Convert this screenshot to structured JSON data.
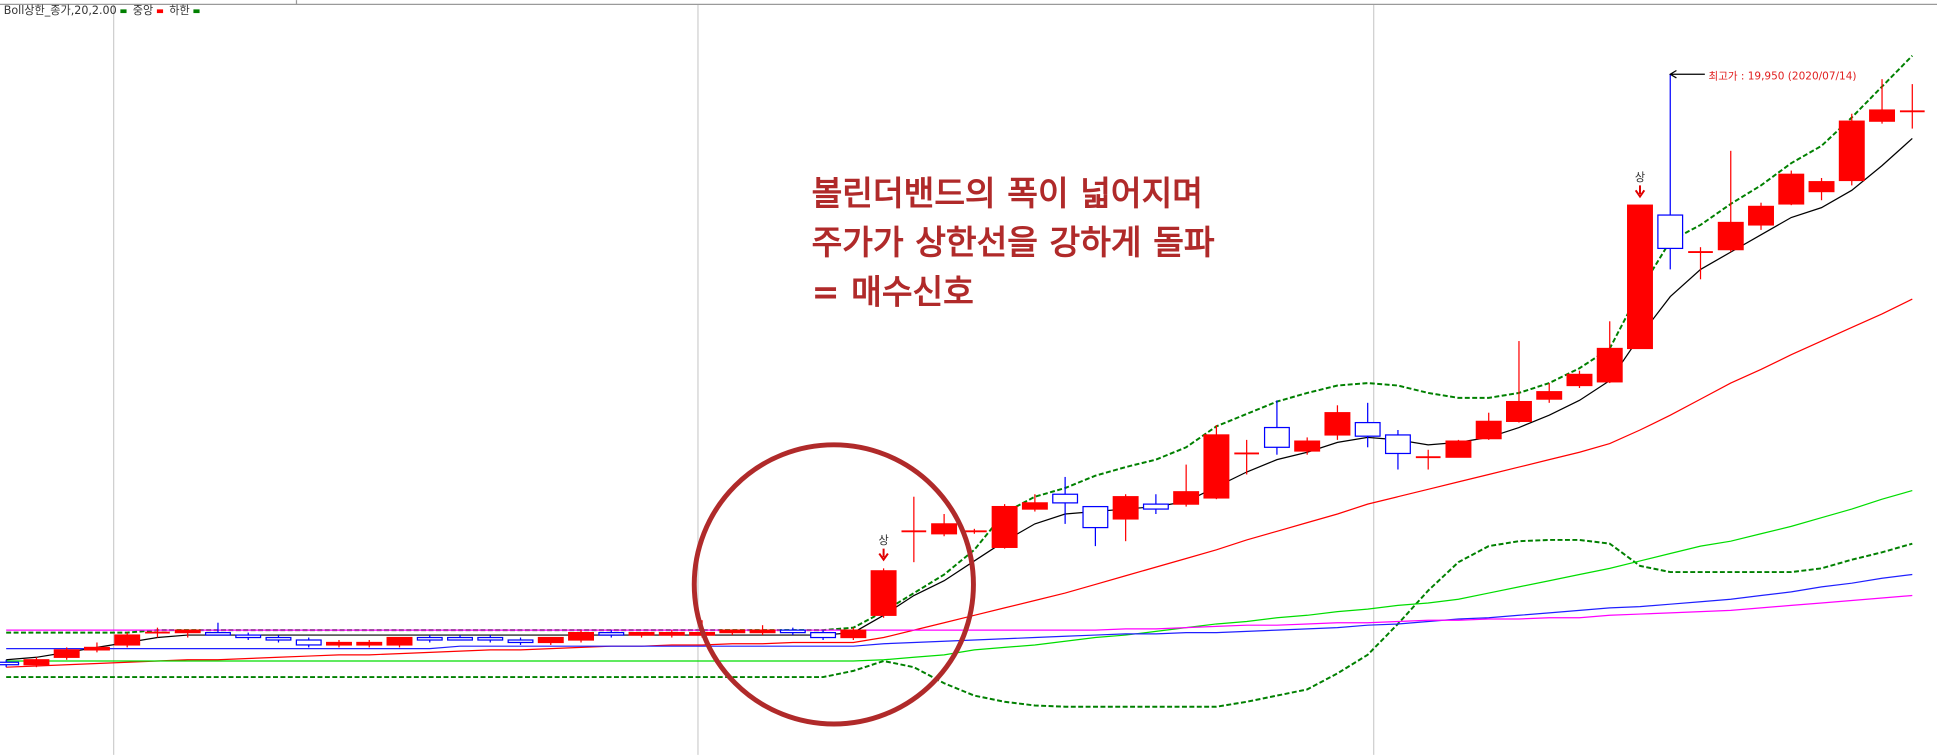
{
  "chart_data": {
    "type": "candlestick",
    "ylim": [
      6175,
      21450
    ],
    "up_color": "#ff0000",
    "down_color": "#0000ff",
    "candles": {
      "open": [
        8050,
        8000,
        8150,
        8300,
        8400,
        8650,
        8650,
        8650,
        8600,
        8550,
        8500,
        8400,
        8400,
        8400,
        8550,
        8550,
        8550,
        8500,
        8450,
        8500,
        8650,
        8600,
        8600,
        8600,
        8650,
        8650,
        8700,
        8650,
        8550,
        9000,
        10700,
        10650,
        10700,
        10375,
        11150,
        11450,
        11200,
        10950,
        11250,
        11250,
        11375,
        12275,
        12800,
        12325,
        12650,
        12900,
        12650,
        12200,
        12200,
        12575,
        12925,
        13375,
        13650,
        13725,
        14400,
        17100,
        16350,
        16400,
        16900,
        17325,
        17575,
        17800,
        19000,
        19200
      ],
      "high": [
        8100,
        8150,
        8350,
        8450,
        8650,
        8750,
        8700,
        8850,
        8650,
        8600,
        8550,
        8500,
        8500,
        8550,
        8600,
        8600,
        8600,
        8550,
        8550,
        8700,
        8700,
        8650,
        8700,
        8900,
        8700,
        8800,
        8750,
        8700,
        8750,
        9950,
        11400,
        11050,
        10750,
        11250,
        11450,
        11800,
        11200,
        11450,
        11450,
        12050,
        12850,
        12550,
        13350,
        12600,
        13250,
        13300,
        12750,
        12350,
        12550,
        13100,
        14550,
        13700,
        13950,
        14950,
        17300,
        19950,
        16450,
        18400,
        17350,
        18000,
        17850,
        19150,
        19850,
        19750
      ],
      "low": [
        7950,
        7950,
        8100,
        8250,
        8350,
        8550,
        8550,
        8600,
        8500,
        8450,
        8350,
        8350,
        8350,
        8350,
        8450,
        8500,
        8450,
        8400,
        8400,
        8450,
        8550,
        8550,
        8550,
        8550,
        8600,
        8600,
        8600,
        8500,
        8500,
        8950,
        10075,
        10600,
        10650,
        10350,
        11100,
        10850,
        10400,
        10500,
        11050,
        11200,
        11350,
        11850,
        12250,
        12250,
        12550,
        12400,
        11950,
        11950,
        12200,
        12550,
        12900,
        13300,
        13600,
        13700,
        14400,
        16000,
        15800,
        16350,
        16800,
        17300,
        17400,
        17700,
        18950,
        18850
      ],
      "close": [
        8000,
        8100,
        8300,
        8350,
        8600,
        8650,
        8700,
        8600,
        8550,
        8500,
        8400,
        8450,
        8450,
        8550,
        8500,
        8500,
        8500,
        8450,
        8550,
        8650,
        8600,
        8650,
        8650,
        8650,
        8700,
        8700,
        8650,
        8550,
        8700,
        9900,
        10700,
        10850,
        10700,
        11200,
        11275,
        11275,
        10775,
        11400,
        11150,
        11500,
        12650,
        12275,
        12400,
        12525,
        13100,
        12625,
        12275,
        12200,
        12525,
        12925,
        13325,
        13525,
        13875,
        14400,
        17300,
        16425,
        16350,
        16950,
        17275,
        17925,
        17775,
        19000,
        19225,
        19200
      ]
    },
    "signals": [
      null,
      null,
      null,
      null,
      null,
      null,
      null,
      null,
      null,
      null,
      null,
      null,
      null,
      null,
      null,
      null,
      null,
      null,
      null,
      null,
      null,
      null,
      null,
      null,
      null,
      null,
      null,
      null,
      null,
      "상",
      null,
      null,
      null,
      null,
      null,
      null,
      null,
      null,
      null,
      null,
      null,
      null,
      null,
      null,
      null,
      null,
      null,
      null,
      null,
      null,
      null,
      null,
      null,
      null,
      "상",
      null,
      null,
      null,
      null,
      null,
      null,
      null,
      null,
      null
    ],
    "max_label": "최고가 : 19,950 (2020/07/14)",
    "series": [
      {
        "name": "Boll상한_종가,20,2.00",
        "color": "#008000",
        "dashed": true,
        "values": [
          8650,
          8650,
          8650,
          8650,
          8650,
          8700,
          8700,
          8700,
          8700,
          8700,
          8700,
          8700,
          8700,
          8700,
          8700,
          8700,
          8700,
          8700,
          8700,
          8700,
          8700,
          8700,
          8700,
          8700,
          8700,
          8700,
          8700,
          8700,
          8750,
          9075,
          9450,
          9825,
          10325,
          11075,
          11400,
          11575,
          11825,
          12000,
          12150,
          12400,
          12825,
          13075,
          13325,
          13500,
          13650,
          13700,
          13650,
          13500,
          13400,
          13400,
          13500,
          13700,
          14000,
          14400,
          15575,
          16575,
          16900,
          17325,
          17700,
          18150,
          18500,
          19075,
          19700,
          20325
        ]
      },
      {
        "name": "중앙",
        "color": "#ff0000",
        "dashed": false,
        "values": [
          7950,
          7975,
          8000,
          8025,
          8050,
          8075,
          8100,
          8100,
          8125,
          8150,
          8175,
          8200,
          8200,
          8225,
          8250,
          8275,
          8300,
          8300,
          8325,
          8350,
          8375,
          8375,
          8400,
          8400,
          8425,
          8425,
          8450,
          8450,
          8450,
          8550,
          8700,
          8850,
          9000,
          9150,
          9300,
          9450,
          9625,
          9800,
          9975,
          10150,
          10325,
          10525,
          10700,
          10875,
          11050,
          11250,
          11400,
          11550,
          11700,
          11850,
          12000,
          12150,
          12300,
          12475,
          12750,
          13050,
          13375,
          13700,
          13975,
          14275,
          14550,
          14825,
          15100,
          15400
        ]
      },
      {
        "name": "하한",
        "color": "#008000",
        "dashed": true,
        "values": [
          7750,
          7750,
          7750,
          7750,
          7750,
          7750,
          7750,
          7750,
          7750,
          7750,
          7750,
          7750,
          7750,
          7750,
          7750,
          7750,
          7750,
          7750,
          7750,
          7750,
          7750,
          7750,
          7750,
          7750,
          7750,
          7750,
          7750,
          7750,
          7875,
          8075,
          7950,
          7625,
          7375,
          7250,
          7175,
          7150,
          7150,
          7150,
          7150,
          7150,
          7150,
          7250,
          7375,
          7500,
          7825,
          8200,
          8825,
          9500,
          10075,
          10400,
          10500,
          10525,
          10525,
          10450,
          10000,
          9875,
          9875,
          9875,
          9875,
          9875,
          9950,
          10125,
          10275,
          10450
        ]
      },
      {
        "color": "#000000",
        "dashed": false,
        "values": [
          8100,
          8150,
          8250,
          8350,
          8450,
          8550,
          8600,
          8600,
          8600,
          8600,
          8600,
          8600,
          8600,
          8600,
          8600,
          8600,
          8600,
          8600,
          8600,
          8600,
          8600,
          8600,
          8600,
          8600,
          8600,
          8600,
          8600,
          8600,
          8650,
          9000,
          9400,
          9700,
          10100,
          10500,
          10850,
          11050,
          11100,
          11150,
          11200,
          11300,
          11600,
          11900,
          12150,
          12300,
          12500,
          12600,
          12550,
          12450,
          12500,
          12600,
          12800,
          13050,
          13350,
          13750,
          14650,
          15450,
          16000,
          16350,
          16700,
          17050,
          17250,
          17600,
          18100,
          18650
        ]
      },
      {
        "color": "#00dd00",
        "dashed": false,
        "values": [
          8075,
          8075,
          8075,
          8075,
          8075,
          8075,
          8075,
          8075,
          8075,
          8075,
          8075,
          8075,
          8075,
          8075,
          8075,
          8075,
          8075,
          8075,
          8075,
          8075,
          8075,
          8075,
          8075,
          8075,
          8075,
          8075,
          8075,
          8075,
          8075,
          8100,
          8150,
          8200,
          8300,
          8350,
          8400,
          8475,
          8550,
          8600,
          8675,
          8750,
          8825,
          8875,
          8950,
          9000,
          9075,
          9125,
          9200,
          9250,
          9325,
          9450,
          9575,
          9700,
          9825,
          9950,
          10100,
          10250,
          10400,
          10500,
          10650,
          10800,
          10975,
          11150,
          11350,
          11525
        ]
      },
      {
        "color": "#2020ff",
        "dashed": false,
        "values": [
          8325,
          8325,
          8325,
          8325,
          8325,
          8325,
          8325,
          8325,
          8325,
          8325,
          8325,
          8325,
          8325,
          8325,
          8325,
          8375,
          8375,
          8375,
          8375,
          8375,
          8375,
          8375,
          8375,
          8375,
          8375,
          8375,
          8375,
          8375,
          8375,
          8425,
          8450,
          8475,
          8500,
          8525,
          8550,
          8575,
          8600,
          8625,
          8625,
          8650,
          8650,
          8675,
          8700,
          8725,
          8750,
          8800,
          8825,
          8875,
          8925,
          8950,
          9000,
          9050,
          9100,
          9150,
          9175,
          9225,
          9275,
          9325,
          9400,
          9475,
          9575,
          9650,
          9750,
          9825
        ]
      },
      {
        "color": "#ff00ff",
        "dashed": false,
        "values": [
          8700,
          8700,
          8700,
          8700,
          8700,
          8700,
          8700,
          8700,
          8700,
          8700,
          8700,
          8700,
          8700,
          8700,
          8700,
          8700,
          8700,
          8700,
          8700,
          8700,
          8700,
          8700,
          8700,
          8700,
          8700,
          8700,
          8700,
          8700,
          8700,
          8700,
          8700,
          8700,
          8700,
          8700,
          8700,
          8700,
          8700,
          8725,
          8725,
          8750,
          8775,
          8800,
          8800,
          8825,
          8850,
          8850,
          8875,
          8900,
          8900,
          8925,
          8925,
          8950,
          8950,
          9000,
          9025,
          9050,
          9075,
          9100,
          9150,
          9200,
          9250,
          9300,
          9350,
          9400
        ]
      }
    ],
    "annotation": [
      "볼린더밴드의 폭이 넓어지며",
      "주가가 상한선을 강하게 돌파",
      "= 매수신호"
    ]
  }
}
